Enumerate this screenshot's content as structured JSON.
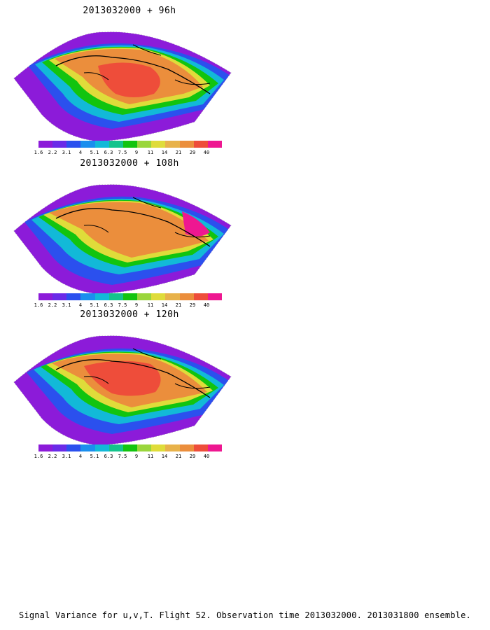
{
  "panels": [
    {
      "title": "2013032000 + 96h"
    },
    {
      "title": "2013032000 + 108h"
    },
    {
      "title": "2013032000 + 120h"
    }
  ],
  "colorbar": {
    "labels": [
      "1.6",
      "2.2",
      "3.1",
      "4",
      "5.1",
      "6.3",
      "7.5",
      "9",
      "11",
      "14",
      "21",
      "29",
      "40"
    ],
    "colors": [
      "#8c1bd9",
      "#6a2be8",
      "#2b50ee",
      "#1a8fee",
      "#12b9d8",
      "#14c48c",
      "#12c40f",
      "#9ad63c",
      "#dfdc3a",
      "#e8b24a",
      "#eb8e3c",
      "#ee4d3a",
      "#ee1791"
    ]
  },
  "caption": "Signal Variance for u,v,T. Flight 52. Observation time 2013032000. 2013031800 ensemble."
}
